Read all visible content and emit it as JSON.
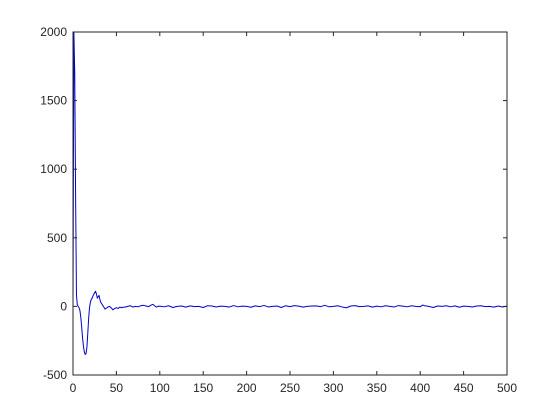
{
  "chart_data": {
    "type": "line",
    "title": "",
    "xlabel": "",
    "ylabel": "",
    "xlim": [
      0,
      500
    ],
    "ylim": [
      -500,
      2000
    ],
    "x_ticks": [
      0,
      50,
      100,
      150,
      200,
      250,
      300,
      350,
      400,
      450,
      500
    ],
    "y_ticks": [
      -500,
      0,
      500,
      1000,
      1500,
      2000
    ],
    "x_tick_labels": [
      "0",
      "50",
      "100",
      "150",
      "200",
      "250",
      "300",
      "350",
      "400",
      "450",
      "500"
    ],
    "y_tick_labels": [
      "-500",
      "0",
      "500",
      "1000",
      "1500",
      "2000"
    ],
    "grid": false,
    "line_color": "#0000cc",
    "axis_color": "#262626",
    "series": [
      {
        "x": [
          0,
          1,
          2,
          3,
          4,
          5,
          6,
          7,
          8,
          9,
          10,
          11,
          12,
          13,
          14,
          15,
          16,
          17,
          18,
          19,
          20,
          21,
          22,
          23,
          24,
          25,
          26,
          27,
          28,
          29,
          30,
          31,
          32,
          33,
          34,
          35,
          36,
          37,
          38,
          40,
          42,
          44,
          46,
          48,
          50,
          52,
          54,
          56,
          58,
          60,
          63,
          66,
          69,
          72,
          75,
          78,
          81,
          84,
          87,
          90,
          92,
          94,
          96,
          98,
          100,
          105,
          110,
          115,
          120,
          125,
          130,
          135,
          140,
          145,
          150,
          155,
          160,
          165,
          170,
          175,
          180,
          185,
          190,
          195,
          200,
          205,
          210,
          215,
          220,
          225,
          230,
          235,
          240,
          245,
          250,
          255,
          260,
          265,
          270,
          275,
          280,
          285,
          290,
          295,
          300,
          305,
          310,
          315,
          320,
          325,
          330,
          335,
          340,
          345,
          350,
          355,
          360,
          365,
          370,
          375,
          380,
          385,
          390,
          395,
          400,
          403,
          405,
          410,
          415,
          420,
          425,
          430,
          435,
          440,
          445,
          450,
          455,
          460,
          465,
          470,
          475,
          480,
          485,
          490,
          495,
          500
        ],
        "values": [
          0,
          2000,
          1700,
          800,
          80,
          10,
          0,
          -10,
          -30,
          -80,
          -150,
          -230,
          -290,
          -330,
          -350,
          -345,
          -300,
          -200,
          -90,
          -10,
          30,
          50,
          60,
          75,
          90,
          100,
          110,
          90,
          60,
          70,
          80,
          50,
          30,
          20,
          10,
          0,
          -10,
          -20,
          -15,
          -5,
          0,
          -10,
          -25,
          -15,
          -10,
          -15,
          -5,
          -10,
          -5,
          -5,
          0,
          5,
          -5,
          0,
          -3,
          5,
          8,
          3,
          -2,
          10,
          15,
          5,
          -5,
          0,
          2,
          -3,
          5,
          -8,
          0,
          3,
          -5,
          4,
          -2,
          0,
          -8,
          5,
          3,
          -4,
          2,
          0,
          -5,
          6,
          -3,
          2,
          0,
          -6,
          4,
          -2,
          7,
          -4,
          0,
          3,
          -8,
          5,
          -2,
          6,
          2,
          -5,
          0,
          3,
          4,
          -2,
          8,
          -3,
          0,
          5,
          -4,
          -10,
          3,
          6,
          -2,
          0,
          4,
          -5,
          2,
          -3,
          5,
          0,
          -4,
          6,
          2,
          -3,
          5,
          0,
          -2,
          10,
          5,
          0,
          -8,
          3,
          0,
          5,
          -3,
          4,
          -6,
          2,
          0,
          -4,
          3,
          5,
          -2,
          0,
          -5,
          3,
          -4,
          2
        ]
      }
    ]
  }
}
